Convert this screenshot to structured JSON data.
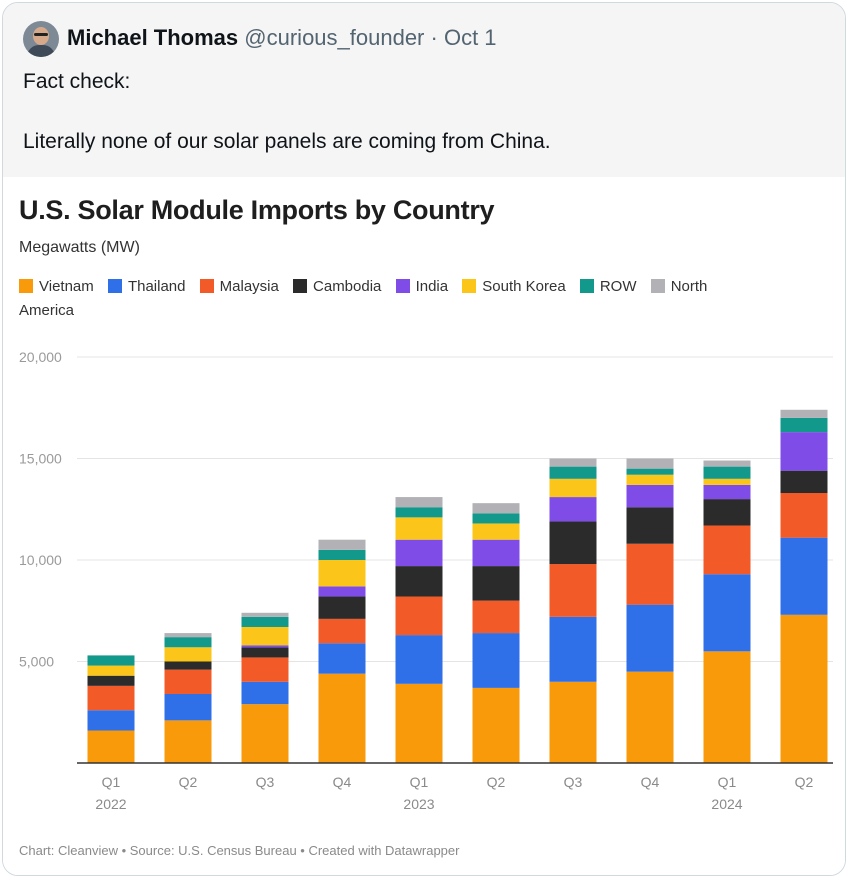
{
  "tweet": {
    "name": "Michael Thomas",
    "handle": "@curious_founder",
    "separator": "·",
    "date": "Oct 1",
    "line1": "Fact check:",
    "line2": "Literally none of our solar panels are coming from China."
  },
  "chart_data": {
    "type": "bar",
    "stacked": true,
    "title": "U.S. Solar Module Imports by Country",
    "ylabel": "Megawatts (MW)",
    "ylim": [
      0,
      20000
    ],
    "yticks": [
      0,
      5000,
      10000,
      15000,
      20000
    ],
    "ytick_labels": [
      "",
      "5,000",
      "10,000",
      "15,000",
      "20,000"
    ],
    "categories": [
      "Q1 2022",
      "Q2 2022",
      "Q3 2022",
      "Q4 2022",
      "Q1 2023",
      "Q2 2023",
      "Q3 2023",
      "Q4 2023",
      "Q1 2024",
      "Q2 2024"
    ],
    "x_tick_labels": [
      {
        "q": "Q1",
        "y": "2022"
      },
      {
        "q": "Q2",
        "y": ""
      },
      {
        "q": "Q3",
        "y": ""
      },
      {
        "q": "Q4",
        "y": ""
      },
      {
        "q": "Q1",
        "y": "2023"
      },
      {
        "q": "Q2",
        "y": ""
      },
      {
        "q": "Q3",
        "y": ""
      },
      {
        "q": "Q4",
        "y": ""
      },
      {
        "q": "Q1",
        "y": "2024"
      },
      {
        "q": "Q2",
        "y": ""
      }
    ],
    "series": [
      {
        "name": "Vietnam",
        "color": "#f99a0a",
        "values": [
          1600,
          2100,
          2900,
          4400,
          3900,
          3700,
          4000,
          4500,
          5500,
          7300
        ]
      },
      {
        "name": "Thailand",
        "color": "#2f6fe8",
        "values": [
          1000,
          1300,
          1100,
          1500,
          2400,
          2700,
          3200,
          3300,
          3800,
          3800
        ]
      },
      {
        "name": "Malaysia",
        "color": "#f25a27",
        "values": [
          1200,
          1200,
          1200,
          1200,
          1900,
          1600,
          2600,
          3000,
          2400,
          2200
        ]
      },
      {
        "name": "Cambodia",
        "color": "#2b2b2b",
        "values": [
          500,
          400,
          500,
          1100,
          1500,
          1700,
          2100,
          1800,
          1300,
          1100
        ]
      },
      {
        "name": "India",
        "color": "#7f4ce8",
        "values": [
          0,
          0,
          100,
          500,
          1300,
          1300,
          1200,
          1100,
          700,
          1900
        ]
      },
      {
        "name": "South Korea",
        "color": "#fbc51a",
        "values": [
          500,
          700,
          900,
          1300,
          1100,
          800,
          900,
          500,
          300,
          0
        ]
      },
      {
        "name": "ROW",
        "color": "#12998b",
        "values": [
          500,
          500,
          500,
          500,
          500,
          500,
          600,
          300,
          600,
          700
        ]
      },
      {
        "name": "North America",
        "color": "#b1b1b6",
        "values": [
          0,
          200,
          200,
          500,
          500,
          500,
          400,
          500,
          300,
          400
        ]
      }
    ],
    "legend_labels": [
      "Vietnam",
      "Thailand",
      "Malaysia",
      "Cambodia",
      "India",
      "South Korea",
      "ROW",
      "North",
      "America"
    ],
    "footer": "Chart: Cleanview • Source: U.S. Census Bureau • Created with Datawrapper"
  }
}
